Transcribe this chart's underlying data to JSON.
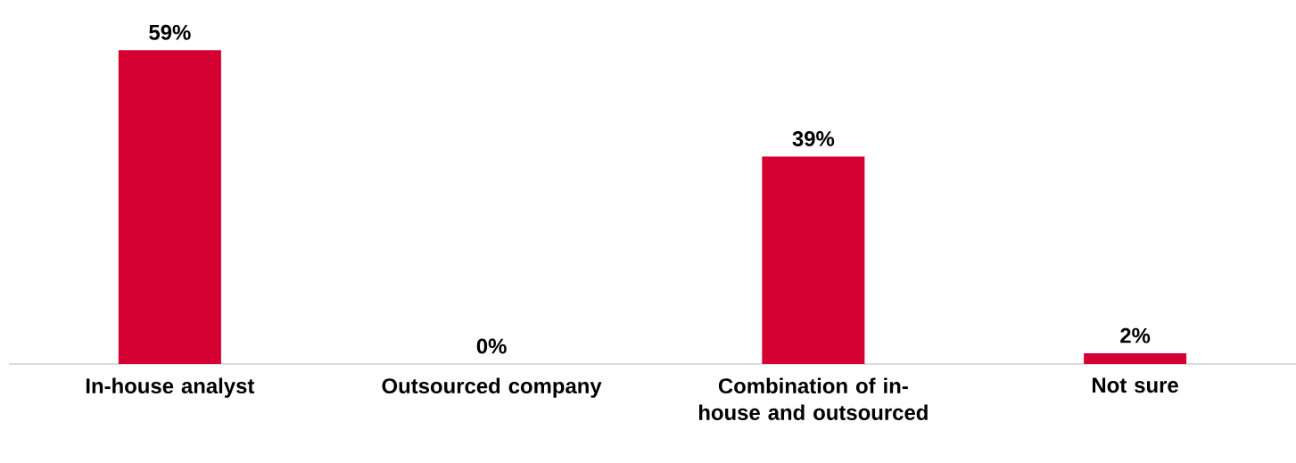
{
  "chart_data": {
    "type": "bar",
    "categories": [
      "In-house analyst",
      "Outsourced company",
      "Combination of in-house and outsourced",
      "Not sure"
    ],
    "values": [
      59,
      0,
      39,
      2
    ],
    "value_labels": [
      "59%",
      "0%",
      "39%",
      "2%"
    ],
    "color": "#d50032"
  }
}
